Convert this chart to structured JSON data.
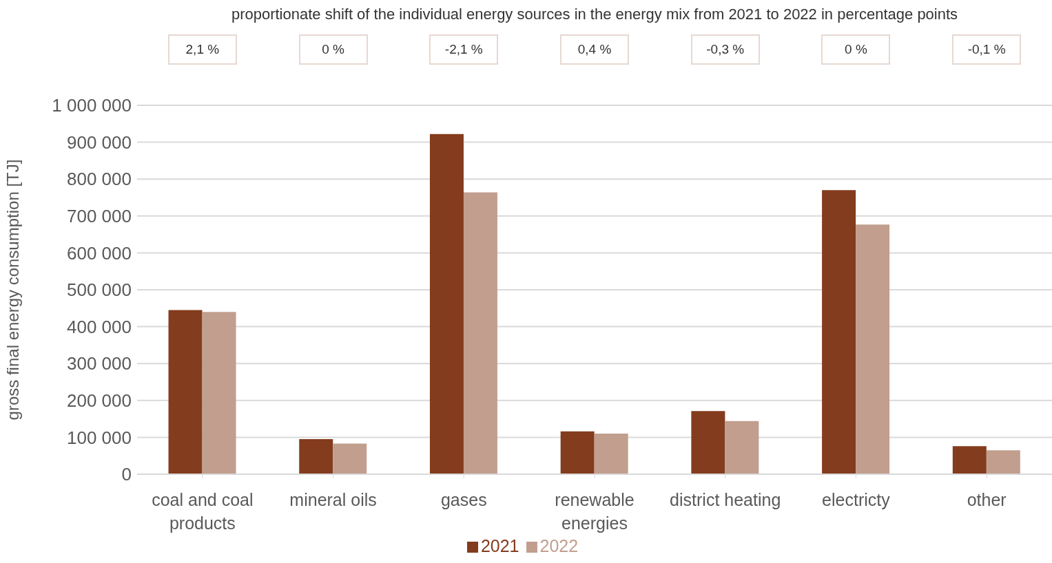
{
  "chart_data": {
    "type": "bar",
    "title": "proportionate shift of the individual energy sources in the energy mix from 2021 to 2022 in percentage points",
    "ylabel": "gross final energy consumption [TJ]",
    "categories": [
      "coal and coal products",
      "mineral oils",
      "gases",
      "renewable energies",
      "district heating",
      "electricty",
      "other"
    ],
    "series": [
      {
        "name": "2021",
        "color": "#833c1d",
        "values": [
          445000,
          95000,
          922000,
          116000,
          171000,
          770000,
          76000
        ]
      },
      {
        "name": "2022",
        "color": "#c29e8e",
        "values": [
          440000,
          83000,
          764000,
          110000,
          144000,
          677000,
          65000
        ]
      }
    ],
    "annotations": [
      "2,1 %",
      "0 %",
      "-2,1 %",
      "0,4 %",
      "-0,3 %",
      "0 %",
      "-0,1 %"
    ],
    "ylim": [
      0,
      1000000
    ],
    "yticks": [
      0,
      100000,
      200000,
      300000,
      400000,
      500000,
      600000,
      700000,
      800000,
      900000,
      1000000
    ],
    "grid": "y",
    "legend": "bottom"
  }
}
